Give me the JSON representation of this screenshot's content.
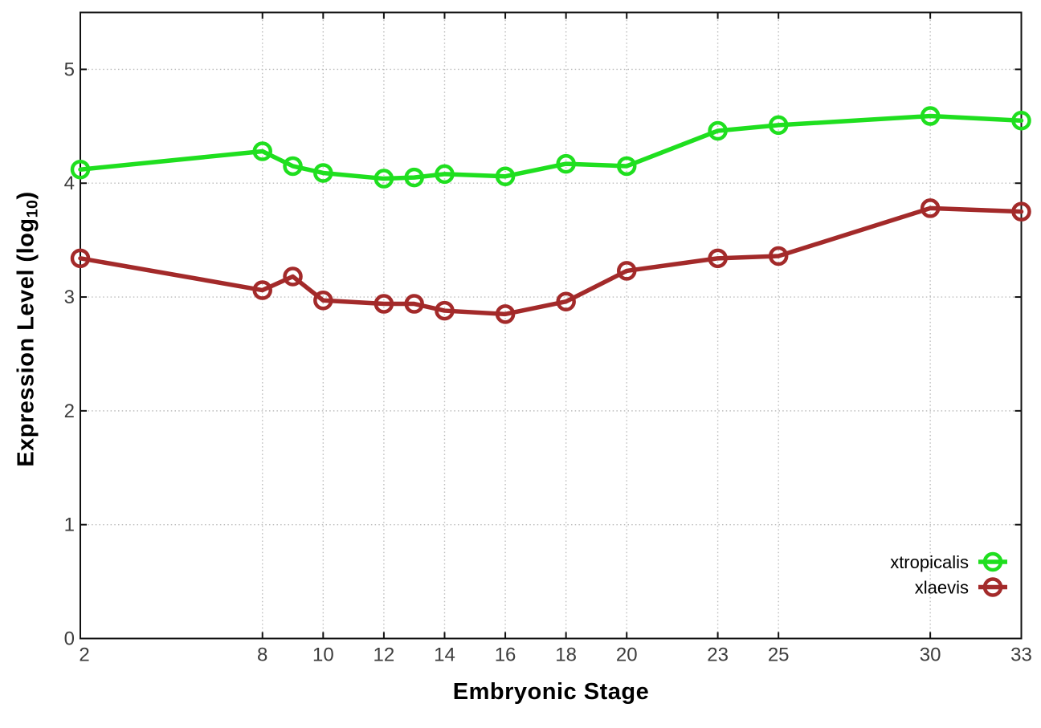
{
  "chart_data": {
    "type": "line",
    "title": "",
    "xlabel": "Embryonic Stage",
    "ylabel": "Expression Level (log10)",
    "ylabel_parts": {
      "prefix": "Expression Level (log",
      "sub": "10",
      "suffix": ")"
    },
    "x": [
      2,
      8,
      9,
      10,
      12,
      13,
      14,
      16,
      18,
      20,
      23,
      25,
      30,
      33
    ],
    "series": [
      {
        "name": "xtropicalis",
        "color": "#1fdf1f",
        "values": [
          4.12,
          4.28,
          4.15,
          4.09,
          4.04,
          4.05,
          4.08,
          4.06,
          4.17,
          4.15,
          4.46,
          4.51,
          4.59,
          4.55
        ]
      },
      {
        "name": "xlaevis",
        "color": "#a32a2a",
        "values": [
          3.34,
          3.06,
          3.18,
          2.97,
          2.94,
          2.94,
          2.88,
          2.85,
          2.96,
          3.23,
          3.34,
          3.36,
          3.78,
          3.75
        ]
      }
    ],
    "xticks": [
      2,
      8,
      10,
      12,
      14,
      16,
      18,
      20,
      23,
      25,
      30,
      33
    ],
    "yticks": [
      0,
      1,
      2,
      3,
      4,
      5
    ],
    "xlim": [
      2,
      33
    ],
    "ylim": [
      0,
      5.5
    ],
    "grid": true,
    "legend_position": "bottom-right",
    "marker": "open-circle",
    "colors": {
      "grid": "#bdbdbd",
      "axis": "#111111",
      "tick_label": "#3d3d3d",
      "label": "#000000",
      "background": "#ffffff"
    }
  }
}
